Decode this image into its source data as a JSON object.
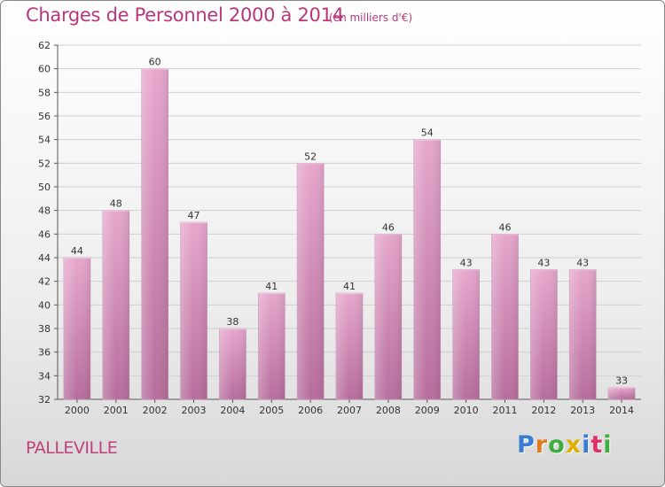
{
  "header": {
    "title": "Charges de Personnel 2000 à 2014",
    "subtitle": "(en milliers d'€)"
  },
  "footer": {
    "town": "PALLEVILLE",
    "brand_letters": [
      {
        "ch": "P",
        "color": "#3a7bd5"
      },
      {
        "ch": "r",
        "color": "#e07b1a"
      },
      {
        "ch": "o",
        "color": "#3fae3f"
      },
      {
        "ch": "x",
        "color": "#e0b000"
      },
      {
        "ch": "i",
        "color": "#3a7bd5"
      },
      {
        "ch": "t",
        "color": "#e0306a"
      },
      {
        "ch": "i",
        "color": "#3fae3f"
      }
    ]
  },
  "chart_data": {
    "type": "bar",
    "title": "Charges de Personnel 2000 à 2014",
    "subtitle": "(en milliers d'€)",
    "categories": [
      "2000",
      "2001",
      "2002",
      "2003",
      "2004",
      "2005",
      "2006",
      "2007",
      "2008",
      "2009",
      "2010",
      "2011",
      "2012",
      "2013",
      "2014"
    ],
    "values": [
      44,
      48,
      60,
      47,
      38,
      41,
      52,
      41,
      46,
      54,
      43,
      46,
      43,
      43,
      33
    ],
    "ylim": [
      32,
      62
    ],
    "yticks": [
      32,
      34,
      36,
      38,
      40,
      42,
      44,
      46,
      48,
      50,
      52,
      54,
      56,
      58,
      60,
      62
    ],
    "grid": true,
    "bar_color": "#d48ab8"
  }
}
